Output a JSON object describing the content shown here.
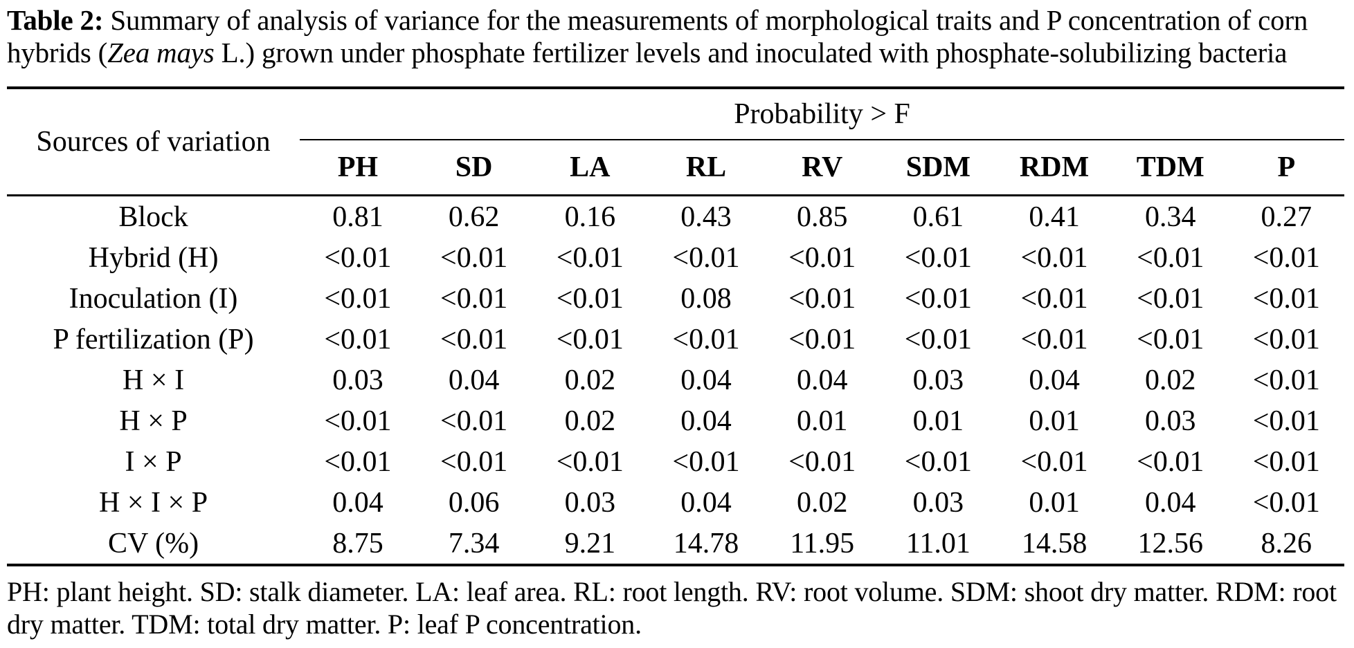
{
  "title": {
    "label": "Table 2:",
    "before_italic": " Summary of analysis of variance for the measurements of morphological traits and P concentration of corn hybrids (",
    "italic": "Zea mays",
    "after_italic": " L.) grown under phosphate fertilizer levels and inoculated with phosphate-solubilizing bacteria"
  },
  "table": {
    "corner_header": "Sources of variation",
    "spanner_header": "Probability > F",
    "columns": [
      "PH",
      "SD",
      "LA",
      "RL",
      "RV",
      "SDM",
      "RDM",
      "TDM",
      "P"
    ],
    "rows": [
      {
        "label": "Block",
        "values": [
          "0.81",
          "0.62",
          "0.16",
          "0.43",
          "0.85",
          "0.61",
          "0.41",
          "0.34",
          "0.27"
        ]
      },
      {
        "label": "Hybrid (H)",
        "values": [
          "<0.01",
          "<0.01",
          "<0.01",
          "<0.01",
          "<0.01",
          "<0.01",
          "<0.01",
          "<0.01",
          "<0.01"
        ]
      },
      {
        "label": "Inoculation (I)",
        "values": [
          "<0.01",
          "<0.01",
          "<0.01",
          "0.08",
          "<0.01",
          "<0.01",
          "<0.01",
          "<0.01",
          "<0.01"
        ]
      },
      {
        "label": "P fertilization (P)",
        "values": [
          "<0.01",
          "<0.01",
          "<0.01",
          "<0.01",
          "<0.01",
          "<0.01",
          "<0.01",
          "<0.01",
          "<0.01"
        ]
      },
      {
        "label": "H × I",
        "values": [
          "0.03",
          "0.04",
          "0.02",
          "0.04",
          "0.04",
          "0.03",
          "0.04",
          "0.02",
          "<0.01"
        ]
      },
      {
        "label": "H × P",
        "values": [
          "<0.01",
          "<0.01",
          "0.02",
          "0.04",
          "0.01",
          "0.01",
          "0.01",
          "0.03",
          "<0.01"
        ]
      },
      {
        "label": "I × P",
        "values": [
          "<0.01",
          "<0.01",
          "<0.01",
          "<0.01",
          "<0.01",
          "<0.01",
          "<0.01",
          "<0.01",
          "<0.01"
        ]
      },
      {
        "label": "H × I × P",
        "values": [
          "0.04",
          "0.06",
          "0.03",
          "0.04",
          "0.02",
          "0.03",
          "0.01",
          "0.04",
          "<0.01"
        ]
      },
      {
        "label": "CV (%)",
        "values": [
          "8.75",
          "7.34",
          "9.21",
          "14.78",
          "11.95",
          "11.01",
          "14.58",
          "12.56",
          "8.26"
        ]
      }
    ]
  },
  "footnote": "PH: plant height. SD: stalk diameter. LA: leaf area. RL: root length. RV: root volume. SDM: shoot dry matter. RDM: root dry matter. TDM: total dry matter. P: leaf P concentration."
}
